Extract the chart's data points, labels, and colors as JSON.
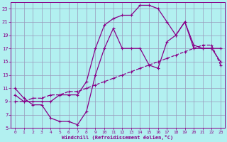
{
  "xlabel": "Windchill (Refroidissement éolien,°C)",
  "bg_color": "#b2f0f0",
  "grid_color": "#9999bb",
  "line_color": "#880088",
  "xlim": [
    -0.5,
    23.5
  ],
  "ylim": [
    5,
    24
  ],
  "xticks": [
    0,
    1,
    2,
    3,
    4,
    5,
    6,
    7,
    8,
    9,
    10,
    11,
    12,
    13,
    14,
    15,
    16,
    17,
    18,
    19,
    20,
    21,
    22,
    23
  ],
  "yticks": [
    5,
    7,
    9,
    11,
    13,
    15,
    17,
    19,
    21,
    23
  ],
  "line1_x": [
    0,
    1,
    2,
    3,
    4,
    5,
    6,
    7,
    8,
    9,
    10,
    11,
    12,
    13,
    14,
    15,
    16,
    17,
    18,
    19,
    20,
    21,
    22,
    23
  ],
  "line1_y": [
    11,
    9.5,
    8.5,
    8.5,
    6.5,
    6,
    6,
    5.5,
    7.5,
    13,
    17,
    20,
    17,
    17,
    17,
    14.5,
    14,
    18,
    19,
    21,
    17,
    17,
    17,
    15
  ],
  "line2_x": [
    0,
    1,
    2,
    3,
    4,
    5,
    6,
    7,
    8,
    9,
    10,
    11,
    12,
    13,
    14,
    15,
    16,
    17,
    18,
    19,
    20,
    21,
    22,
    23
  ],
  "line2_y": [
    9,
    9,
    9.5,
    9.5,
    10,
    10,
    10.5,
    10.5,
    11,
    11.5,
    12,
    12.5,
    13,
    13.5,
    14,
    14.5,
    15,
    15.5,
    16,
    16.5,
    17,
    17.5,
    17.5,
    14.5
  ],
  "line3_x": [
    0,
    1,
    2,
    3,
    4,
    5,
    6,
    7,
    8,
    9,
    10,
    11,
    12,
    13,
    14,
    15,
    16,
    17,
    18,
    19,
    20,
    21,
    22,
    23
  ],
  "line3_y": [
    10,
    9,
    9,
    9,
    9,
    10,
    10,
    10,
    12,
    17,
    20.5,
    21.5,
    22,
    22,
    23.5,
    23.5,
    23,
    21,
    19,
    21,
    17.5,
    17,
    17,
    17
  ]
}
